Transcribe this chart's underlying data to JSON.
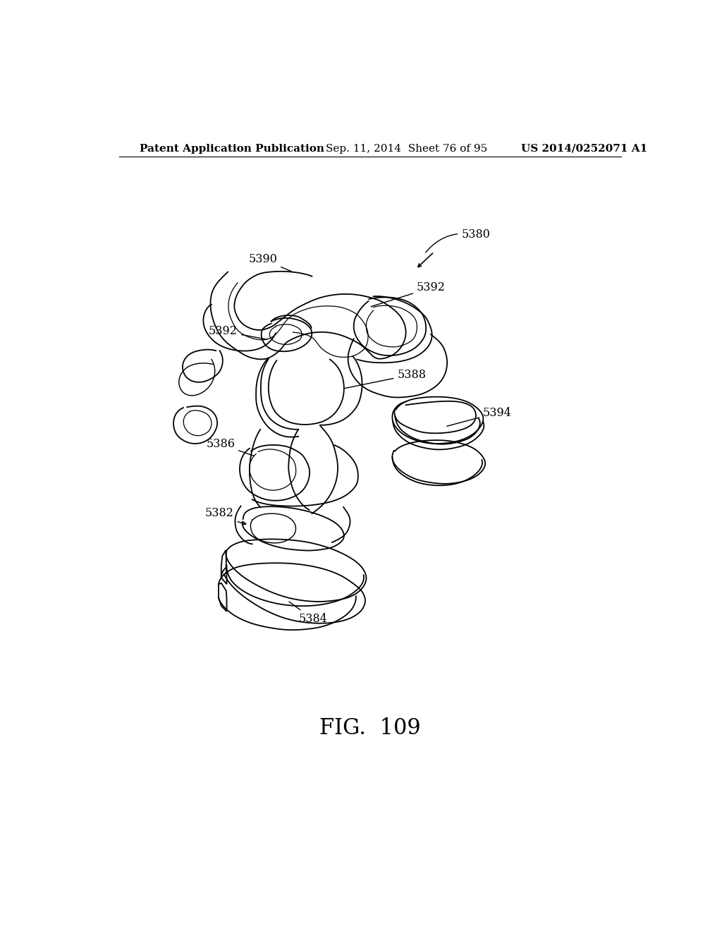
{
  "background_color": "#ffffff",
  "header_left": "Patent Application Publication",
  "header_center": "Sep. 11, 2014  Sheet 76 of 95",
  "header_right": "US 2014/0252071 A1",
  "figure_label": "FIG.  109",
  "text_color": "#000000",
  "line_color": "#000000",
  "header_fontsize": 11,
  "label_fontsize": 11.5,
  "fig_label_fontsize": 22
}
